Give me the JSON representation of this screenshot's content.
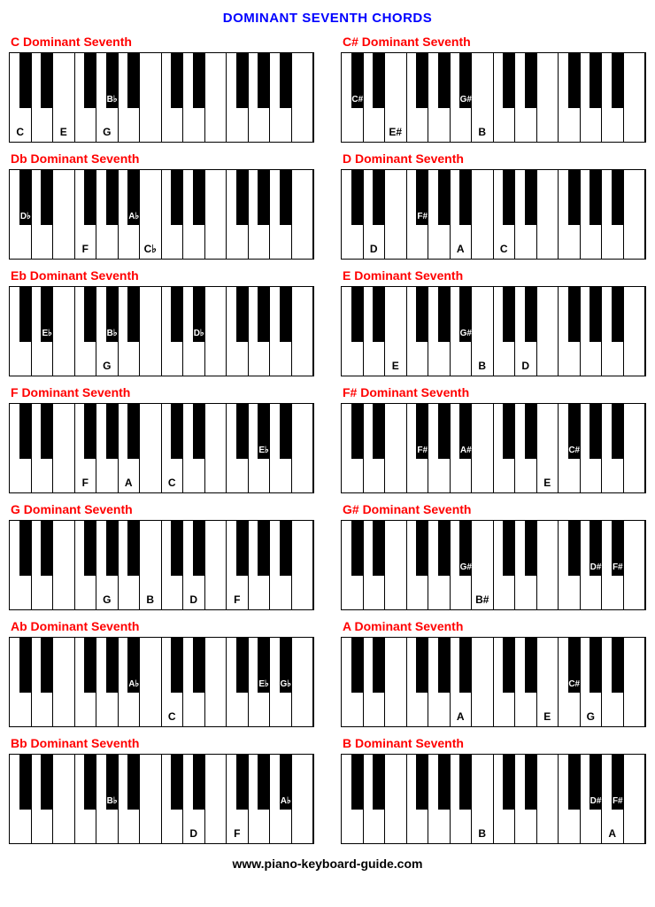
{
  "page": {
    "title": "DOMINANT SEVENTH CHORDS",
    "footer": "www.piano-keyboard-guide.com",
    "title_color": "#0000ff",
    "chord_title_color": "#ff0000",
    "background_color": "#ffffff",
    "white_key_count": 14,
    "black_key_color": "#000000",
    "white_key_color": "#ffffff",
    "font_family": "Arial"
  },
  "black_key_positions_pct": [
    5.2,
    12.3,
    26.6,
    33.7,
    40.9,
    55.2,
    62.3,
    76.6,
    83.7,
    90.9
  ],
  "chords": [
    {
      "title": "C Dominant  Seventh",
      "white_labels": {
        "0": "C",
        "2": "E",
        "4": "G"
      },
      "black_labels": {
        "3": "B♭"
      }
    },
    {
      "title": "C# Dominant  Seventh",
      "white_labels": {
        "2": "E#",
        "6": "B"
      },
      "black_labels": {
        "0": "C#",
        "4": "G#"
      }
    },
    {
      "title": "Db Dominant Seventh",
      "white_labels": {
        "3": "F",
        "6": "C♭"
      },
      "black_labels": {
        "0": "D♭",
        "4": "A♭"
      }
    },
    {
      "title": "D Dominant  Seventh",
      "white_labels": {
        "1": "D",
        "5": "A",
        "7": "C"
      },
      "black_labels": {
        "2": "F#"
      }
    },
    {
      "title": "Eb Dominant  Seventh",
      "white_labels": {
        "4": "G"
      },
      "black_labels": {
        "1": "E♭",
        "3": "B♭",
        "6": "D♭"
      }
    },
    {
      "title": "E Dominant  Seventh",
      "white_labels": {
        "2": "E",
        "6": "B",
        "8": "D"
      },
      "black_labels": {
        "4": "G#"
      }
    },
    {
      "title": "F Dominant  Seventh",
      "white_labels": {
        "3": "F",
        "5": "A",
        "7": "C"
      },
      "black_labels": {
        "8": "E♭"
      }
    },
    {
      "title": "F# Dominant  Seventh",
      "white_labels": {
        "9": "E"
      },
      "black_labels": {
        "2": "F#",
        "4": "A#",
        "7": "C#"
      }
    },
    {
      "title": "G Dominant  Seventh",
      "white_labels": {
        "4": "G",
        "6": "B",
        "8": "D",
        "10": "F"
      },
      "black_labels": {}
    },
    {
      "title": "G# Dominant Seventh",
      "white_labels": {
        "6": "B#"
      },
      "black_labels": {
        "4": "G#",
        "8": "D#",
        "9": "F#"
      }
    },
    {
      "title": "Ab Dominant  Seventh",
      "white_labels": {
        "7": "C"
      },
      "black_labels": {
        "4": "A♭",
        "8": "E♭",
        "9": "G♭"
      }
    },
    {
      "title": "A Dominant  Seventh",
      "white_labels": {
        "5": "A",
        "9": "E",
        "11": "G"
      },
      "black_labels": {
        "7": "C#"
      }
    },
    {
      "title": "Bb Dominant  Seventh",
      "white_labels": {
        "8": "D",
        "10": "F"
      },
      "black_labels": {
        "3": "B♭",
        "9": "A♭"
      }
    },
    {
      "title": "B Dominant  Seventh",
      "white_labels": {
        "6": "B",
        "12": "A"
      },
      "black_labels": {
        "8": "D#",
        "9": "F#"
      }
    }
  ]
}
